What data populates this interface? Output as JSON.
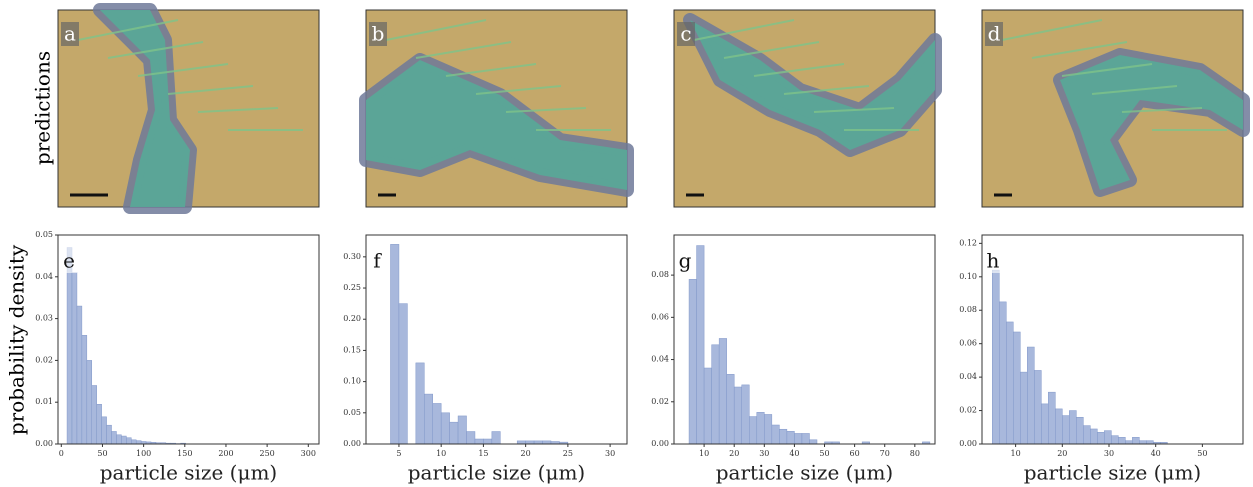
{
  "row_label": "predictions",
  "images": [
    {
      "label": "a"
    },
    {
      "label": "b"
    },
    {
      "label": "c"
    },
    {
      "label": "d"
    }
  ],
  "chart_data": [
    {
      "type": "histogram",
      "label": "e",
      "ylabel": "probability density",
      "xlabel": "particle size (μm)",
      "color": "#a8b8dc",
      "edgecolor": "#8097c9",
      "bins": [
        7,
        13,
        19,
        25,
        31,
        37,
        43,
        49,
        55,
        61,
        67,
        73,
        79,
        85,
        91,
        97,
        103,
        109,
        115,
        121,
        127,
        133,
        139,
        145,
        151
      ],
      "values": [
        0.047,
        0.041,
        0.033,
        0.026,
        0.02,
        0.014,
        0.0095,
        0.0065,
        0.0045,
        0.003,
        0.0022,
        0.0019,
        0.0015,
        0.001,
        0.0008,
        0.0006,
        0.0005,
        0.0004,
        0.0003,
        0.0003,
        0.0002,
        0.0002,
        0.0001,
        0.0002
      ],
      "xlim": [
        -4,
        313
      ],
      "xticks": [
        0,
        50,
        100,
        150,
        200,
        250,
        300
      ],
      "ylim": [
        0,
        0.05
      ],
      "yticks": [
        {
          "value": 0,
          "label": "0.00"
        },
        0.01,
        0.02,
        0.03,
        0.04,
        0.05
      ]
    },
    {
      "type": "histogram",
      "label": "f",
      "xlabel": "particle size (μm)",
      "color": "#a8b8dc",
      "edgecolor": "#8097c9",
      "bins": [
        4,
        5,
        6,
        7,
        8,
        9,
        10,
        11,
        12,
        13,
        14,
        15,
        16,
        17,
        18,
        19,
        20,
        21,
        22,
        23,
        24,
        25
      ],
      "values": [
        0.32,
        0.225,
        0,
        0.13,
        0.08,
        0.065,
        0.05,
        0.035,
        0.045,
        0.02,
        0.008,
        0.008,
        0.02,
        0,
        0,
        0.005,
        0.005,
        0.005,
        0.005,
        0.004,
        0.003
      ],
      "xlim": [
        1.1,
        32
      ],
      "xticks": [
        5,
        10,
        15,
        20,
        25,
        30
      ],
      "ylim": [
        0,
        0.335
      ],
      "yticks": [
        {
          "value": 0,
          "label": "0.00"
        },
        0.05,
        {
          "value": 0.1,
          "label": "0.10"
        },
        0.15,
        {
          "value": 0.2,
          "label": "0.20"
        },
        0.25,
        {
          "value": 0.3,
          "label": "0.30"
        }
      ]
    },
    {
      "type": "histogram",
      "label": "g",
      "xlabel": "particle size (μm)",
      "color": "#a8b8dc",
      "edgecolor": "#8097c9",
      "bins": [
        5,
        7.5,
        10,
        12.5,
        15,
        17.5,
        20,
        22.5,
        25,
        27.5,
        30,
        32.5,
        35,
        37.5,
        40,
        42.5,
        45,
        47.5,
        50,
        52.5,
        55,
        57.5,
        60,
        62.5,
        65,
        67.5,
        70,
        72.5,
        75,
        77.5,
        80,
        82.5,
        85
      ],
      "values": [
        0.078,
        0.094,
        0.036,
        0.047,
        0.05,
        0.033,
        0.027,
        0.028,
        0.013,
        0.015,
        0.014,
        0.009,
        0.007,
        0.006,
        0.005,
        0.005,
        0.002,
        0,
        0.001,
        0.001,
        0,
        0,
        0,
        0.001,
        0,
        0,
        0,
        0,
        0,
        0,
        0,
        0.001
      ],
      "xlim": [
        0,
        86.7
      ],
      "xticks": [
        10,
        20,
        30,
        40,
        50,
        60,
        70,
        80
      ],
      "ylim": [
        0,
        0.099
      ],
      "yticks": [
        {
          "value": 0,
          "label": "0.00"
        },
        0.02,
        0.04,
        0.06,
        0.08
      ]
    },
    {
      "type": "histogram",
      "label": "h",
      "xlabel": "particle size (μm)",
      "color": "#a8b8dc",
      "edgecolor": "#8097c9",
      "bins": [
        5,
        6.5,
        8,
        9.5,
        11,
        12.5,
        14,
        15.5,
        17,
        18.5,
        20,
        21.5,
        23,
        24.5,
        26,
        27.5,
        29,
        30.5,
        32,
        33.5,
        35,
        36.5,
        38,
        39.5,
        41,
        42.5
      ],
      "values": [
        0.104,
        0.085,
        0.073,
        0.067,
        0.043,
        0.058,
        0.044,
        0.024,
        0.031,
        0.021,
        0.017,
        0.02,
        0.016,
        0.011,
        0.009,
        0.007,
        0.008,
        0.005,
        0.004,
        0.002,
        0.004,
        0.002,
        0.002,
        0.001,
        0.001
      ],
      "xlim": [
        2.8,
        58.7
      ],
      "xticks": [
        10,
        20,
        30,
        40,
        50
      ],
      "ylim": [
        0,
        0.125
      ],
      "yticks": [
        {
          "value": 0,
          "label": "0.00"
        },
        0.02,
        0.04,
        0.06,
        0.08,
        {
          "value": 0.1,
          "label": "0.10"
        },
        0.12
      ]
    }
  ]
}
